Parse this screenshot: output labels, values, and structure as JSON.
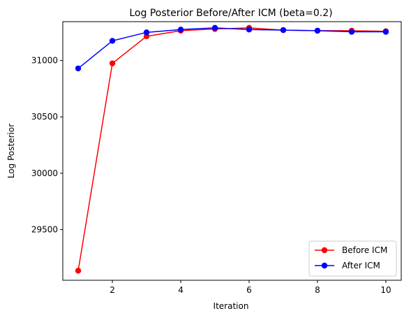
{
  "chart_data": {
    "type": "line",
    "title": "Log Posterior Before/After ICM (beta=0.2)",
    "xlabel": "Iteration",
    "ylabel": "Log Posterior",
    "x": [
      1,
      2,
      3,
      4,
      5,
      6,
      7,
      8,
      9,
      10
    ],
    "xlim": [
      0.55,
      10.45
    ],
    "ylim": [
      29050,
      31345
    ],
    "xticks": [
      2,
      4,
      6,
      8,
      10
    ],
    "yticks": [
      29500,
      30000,
      30500,
      31000
    ],
    "grid": false,
    "legend_position": "lower-right",
    "series": [
      {
        "name": "Before ICM",
        "color": "#ff0000",
        "marker": "circle",
        "values": [
          29135,
          30975,
          31215,
          31265,
          31280,
          31290,
          31270,
          31265,
          31265,
          31260
        ]
      },
      {
        "name": "After ICM",
        "color": "#0000ff",
        "marker": "circle",
        "values": [
          30930,
          31175,
          31250,
          31275,
          31290,
          31275,
          31270,
          31265,
          31255,
          31255
        ]
      }
    ]
  }
}
